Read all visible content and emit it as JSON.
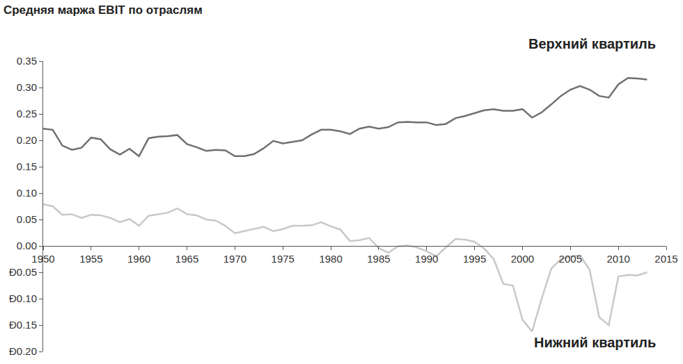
{
  "chart_data": {
    "type": "line",
    "title": "Средняя маржа EBIT по отраслям",
    "x": [
      1950,
      1951,
      1952,
      1953,
      1954,
      1955,
      1956,
      1957,
      1958,
      1959,
      1960,
      1961,
      1962,
      1963,
      1964,
      1965,
      1966,
      1967,
      1968,
      1969,
      1970,
      1971,
      1972,
      1973,
      1974,
      1975,
      1976,
      1977,
      1978,
      1979,
      1980,
      1981,
      1982,
      1983,
      1984,
      1985,
      1986,
      1987,
      1988,
      1989,
      1990,
      1991,
      1992,
      1993,
      1994,
      1995,
      1996,
      1997,
      1998,
      1999,
      2000,
      2001,
      2002,
      2003,
      2004,
      2005,
      2006,
      2007,
      2008,
      2009,
      2010,
      2011,
      2012,
      2013
    ],
    "series": [
      {
        "name": "Верхний квартиль",
        "color": "#707070",
        "values": [
          0.222,
          0.22,
          0.19,
          0.182,
          0.186,
          0.205,
          0.202,
          0.183,
          0.173,
          0.184,
          0.17,
          0.204,
          0.207,
          0.208,
          0.21,
          0.193,
          0.187,
          0.18,
          0.182,
          0.181,
          0.17,
          0.17,
          0.174,
          0.185,
          0.199,
          0.194,
          0.197,
          0.2,
          0.211,
          0.22,
          0.22,
          0.217,
          0.212,
          0.222,
          0.226,
          0.222,
          0.225,
          0.234,
          0.235,
          0.234,
          0.234,
          0.229,
          0.231,
          0.242,
          0.246,
          0.251,
          0.257,
          0.259,
          0.256,
          0.256,
          0.259,
          0.243,
          0.253,
          0.268,
          0.284,
          0.296,
          0.303,
          0.296,
          0.284,
          0.281,
          0.306,
          0.318,
          0.317,
          0.315
        ]
      },
      {
        "name": "Нижний квартиль",
        "color": "#c8c8c8",
        "values": [
          0.079,
          0.075,
          0.059,
          0.06,
          0.053,
          0.059,
          0.058,
          0.053,
          0.045,
          0.051,
          0.038,
          0.057,
          0.06,
          0.063,
          0.071,
          0.06,
          0.058,
          0.05,
          0.048,
          0.038,
          0.024,
          0.028,
          0.032,
          0.036,
          0.028,
          0.032,
          0.038,
          0.038,
          0.039,
          0.045,
          0.037,
          0.031,
          0.009,
          0.011,
          0.015,
          -0.004,
          -0.013,
          -0.001,
          0.001,
          -0.003,
          -0.01,
          -0.02,
          -0.003,
          0.013,
          0.012,
          0.008,
          -0.005,
          -0.025,
          -0.072,
          -0.075,
          -0.14,
          -0.162,
          -0.1,
          -0.043,
          -0.025,
          -0.02,
          -0.018,
          -0.045,
          -0.135,
          -0.15,
          -0.058,
          -0.055,
          -0.056,
          -0.05
        ]
      }
    ],
    "xlim": [
      1950,
      2015
    ],
    "xticks": [
      1950,
      1955,
      1960,
      1965,
      1970,
      1975,
      1980,
      1985,
      1990,
      1995,
      2000,
      2005,
      2010,
      2015
    ],
    "ylim": [
      -0.2,
      0.35
    ],
    "yticks": [
      {
        "value": -0.2,
        "label": "Ð0.20"
      },
      {
        "value": -0.15,
        "label": "Ð0.15"
      },
      {
        "value": -0.1,
        "label": "Ð0.10"
      },
      {
        "value": -0.05,
        "label": "Ð0.05"
      },
      {
        "value": 0,
        "label": "0.00"
      },
      0.05,
      {
        "value": 0.1,
        "label": "0.10"
      },
      0.15,
      {
        "value": 0.2,
        "label": "0.20"
      },
      0.25,
      {
        "value": 0.3,
        "label": "0.30"
      },
      0.35
    ],
    "grid": false
  }
}
